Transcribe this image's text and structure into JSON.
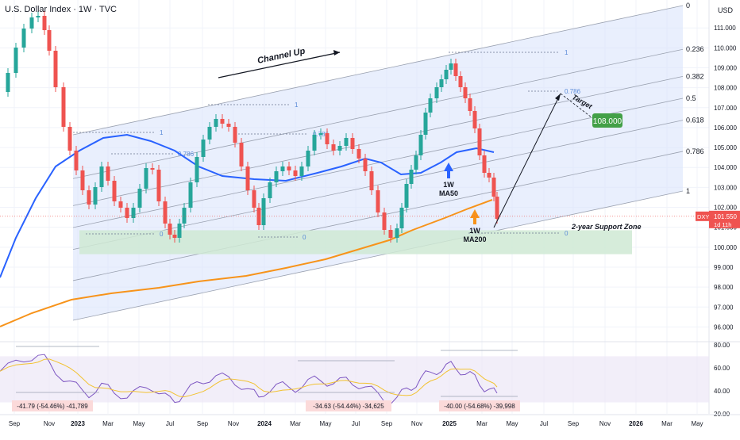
{
  "header": {
    "symbol_title": "U.S. Dollar Index · 1W · TVC",
    "currency": "USD"
  },
  "chart_data": {
    "type": "candlestick",
    "title": "U.S. Dollar Index · 1W · TVC",
    "ylabel": "USD",
    "ylim": [
      95.3,
      112.4
    ],
    "price_ticks": [
      "111.000",
      "110.000",
      "109.000",
      "108.000",
      "107.000",
      "106.000",
      "105.000",
      "104.000",
      "103.000",
      "102.000",
      "101.000",
      "100.000",
      "99.000",
      "98.000",
      "97.000",
      "96.000"
    ],
    "time_labels": [
      "Sep",
      "Nov",
      "2023",
      "Mar",
      "May",
      "Jul",
      "Sep",
      "Nov",
      "2024",
      "Mar",
      "May",
      "Jul",
      "Sep",
      "Nov",
      "2025",
      "Mar",
      "May",
      "Jul",
      "Sep",
      "Nov",
      "2026",
      "Mar",
      "May"
    ],
    "current_price": {
      "symbol": "DXY",
      "value": "101.550",
      "countdown": "1d 11h"
    },
    "channel_fib_levels": [
      "0",
      "0.236",
      "0.382",
      "0.5",
      "0.618",
      "0.786",
      "1"
    ],
    "inner_fib_labels": [
      "1",
      "0.786",
      "0",
      "1",
      "0.786",
      "0",
      "1",
      "0.786",
      "0"
    ],
    "annotations": {
      "channel": "Channel Up",
      "target": "Target",
      "target_value": "108.000",
      "support_zone": "2-year Support Zone",
      "ma50": "1W\nMA50",
      "ma200": "1W\nMA200"
    },
    "rsi": {
      "ticks": [
        "80.00",
        "60.00",
        "40.00",
        "20.00"
      ],
      "ylim": [
        20,
        82
      ],
      "labels": [
        "-41.79 (-54.46%) -41,789",
        "-34.63 (-54.44%) -34,625",
        "-40.00 (-54.68%) -39,998"
      ]
    },
    "colors": {
      "up": "#26a69a",
      "down": "#ef5350",
      "ma50": "#2962ff",
      "ma200": "#f7931a",
      "channel": "#dbe5fb",
      "support": "#cfe9d3",
      "rsi": "#7e57c2"
    }
  }
}
